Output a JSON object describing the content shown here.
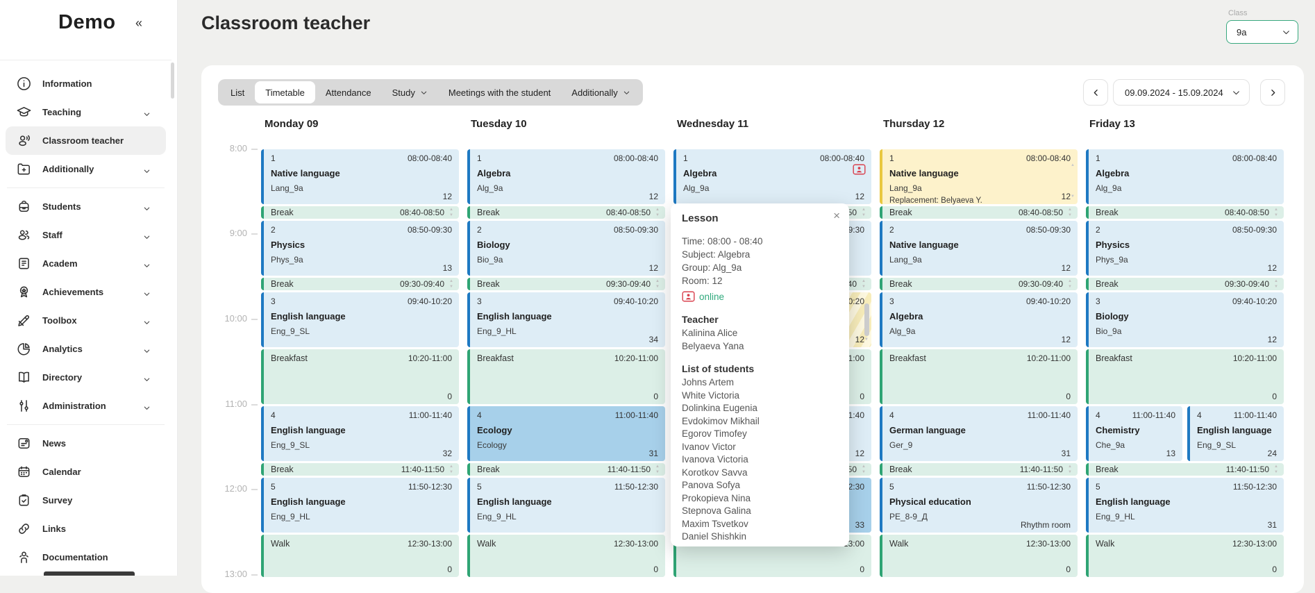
{
  "app": {
    "logo": "Demo"
  },
  "header": {
    "title": "Classroom teacher",
    "class_label": "Class",
    "class_value": "9a"
  },
  "tabs": [
    {
      "label": "List",
      "active": false,
      "dropdown": false
    },
    {
      "label": "Timetable",
      "active": true,
      "dropdown": false
    },
    {
      "label": "Attendance",
      "active": false,
      "dropdown": false
    },
    {
      "label": "Study",
      "active": false,
      "dropdown": true
    },
    {
      "label": "Meetings with the student",
      "active": false,
      "dropdown": false
    },
    {
      "label": "Additionally",
      "active": false,
      "dropdown": true
    }
  ],
  "date_nav": {
    "range": "09.09.2024 - 15.09.2024"
  },
  "sidebar": {
    "groups": [
      [
        {
          "label": "Information",
          "icon": "info",
          "expandable": false,
          "active": false
        },
        {
          "label": "Teaching",
          "icon": "teaching",
          "expandable": true,
          "active": false
        },
        {
          "label": "Classroom teacher",
          "icon": "classroom-teacher",
          "expandable": false,
          "active": true
        },
        {
          "label": "Additionally",
          "icon": "additionally",
          "expandable": true,
          "active": false
        }
      ],
      [
        {
          "label": "Students",
          "icon": "students",
          "expandable": true,
          "active": false
        },
        {
          "label": "Staff",
          "icon": "staff",
          "expandable": true,
          "active": false
        },
        {
          "label": "Academ",
          "icon": "academ",
          "expandable": true,
          "active": false
        },
        {
          "label": "Achievements",
          "icon": "achievements",
          "expandable": true,
          "active": false
        },
        {
          "label": "Toolbox",
          "icon": "toolbox",
          "expandable": true,
          "active": false
        },
        {
          "label": "Analytics",
          "icon": "analytics",
          "expandable": true,
          "active": false
        },
        {
          "label": "Directory",
          "icon": "directory",
          "expandable": true,
          "active": false
        },
        {
          "label": "Administration",
          "icon": "administration",
          "expandable": true,
          "active": false
        }
      ],
      [
        {
          "label": "News",
          "icon": "news",
          "expandable": false,
          "active": false
        },
        {
          "label": "Calendar",
          "icon": "calendar",
          "expandable": false,
          "active": false
        },
        {
          "label": "Survey",
          "icon": "survey",
          "expandable": false,
          "active": false
        },
        {
          "label": "Links",
          "icon": "links",
          "expandable": false,
          "active": false
        },
        {
          "label": "Documentation",
          "icon": "documentation",
          "expandable": false,
          "active": false
        }
      ]
    ]
  },
  "timetable": {
    "time_labels": [
      "8:00",
      "9:00",
      "10:00",
      "11:00",
      "12:00",
      "13:00"
    ],
    "days": [
      {
        "name": "Monday 09",
        "slots": [
          {
            "kind": "lesson",
            "num": "1",
            "subject": "Native language",
            "group": "Lang_9a",
            "time": "08:00-08:40",
            "room": "12",
            "variant": "normal"
          },
          {
            "kind": "break",
            "label": "Break",
            "time": "08:40-08:50"
          },
          {
            "kind": "lesson",
            "num": "2",
            "subject": "Physics",
            "group": "Phys_9a",
            "time": "08:50-09:30",
            "room": "13",
            "variant": "normal"
          },
          {
            "kind": "break",
            "label": "Break",
            "time": "09:30-09:40"
          },
          {
            "kind": "lesson",
            "num": "3",
            "subject": "English language",
            "group": "Eng_9_SL",
            "time": "09:40-10:20",
            "room": "",
            "variant": "normal"
          },
          {
            "kind": "break",
            "label": "Breakfast",
            "time": "10:20-11:00",
            "room": "0"
          },
          {
            "kind": "lesson",
            "num": "4",
            "subject": "English language",
            "group": "Eng_9_SL",
            "time": "11:00-11:40",
            "room": "32",
            "variant": "normal"
          },
          {
            "kind": "break",
            "label": "Break",
            "time": "11:40-11:50"
          },
          {
            "kind": "lesson",
            "num": "5",
            "subject": "English language",
            "group": "Eng_9_HL",
            "time": "11:50-12:30",
            "room": "",
            "variant": "normal"
          },
          {
            "kind": "break",
            "label": "Walk",
            "time": "12:30-13:00",
            "room": "0"
          }
        ]
      },
      {
        "name": "Tuesday 10",
        "slots": [
          {
            "kind": "lesson",
            "num": "1",
            "subject": "Algebra",
            "group": "Alg_9a",
            "time": "08:00-08:40",
            "room": "12",
            "variant": "normal"
          },
          {
            "kind": "break",
            "label": "Break",
            "time": "08:40-08:50"
          },
          {
            "kind": "lesson",
            "num": "2",
            "subject": "Biology",
            "group": "Bio_9a",
            "time": "08:50-09:30",
            "room": "12",
            "variant": "normal"
          },
          {
            "kind": "break",
            "label": "Break",
            "time": "09:30-09:40"
          },
          {
            "kind": "lesson",
            "num": "3",
            "subject": "English language",
            "group": "Eng_9_HL",
            "time": "09:40-10:20",
            "room": "34",
            "variant": "normal"
          },
          {
            "kind": "break",
            "label": "Breakfast",
            "time": "10:20-11:00",
            "room": "0"
          },
          {
            "kind": "lesson",
            "num": "4",
            "subject": "Ecology",
            "group": "Ecology",
            "time": "11:00-11:40",
            "room": "31",
            "variant": "selected"
          },
          {
            "kind": "break",
            "label": "Break",
            "time": "11:40-11:50"
          },
          {
            "kind": "lesson",
            "num": "5",
            "subject": "English language",
            "group": "Eng_9_HL",
            "time": "11:50-12:30",
            "room": "",
            "variant": "normal"
          },
          {
            "kind": "break",
            "label": "Walk",
            "time": "12:30-13:00",
            "room": "0"
          }
        ]
      },
      {
        "name": "Wednesday 11",
        "slots": [
          {
            "kind": "lesson",
            "num": "1",
            "subject": "Algebra",
            "group": "Alg_9a",
            "time": "08:00-08:40",
            "room": "12",
            "variant": "normal",
            "online": true
          },
          {
            "kind": "break",
            "label": "Break",
            "time": "08:40-08:50"
          },
          {
            "kind": "lesson",
            "num": "2",
            "subject": "",
            "group": "",
            "time": "08:50-09:30",
            "room": "",
            "variant": "normal"
          },
          {
            "kind": "break",
            "label": "Break",
            "time": "09:30-09:40"
          },
          {
            "kind": "lesson",
            "num": "3",
            "subject": "",
            "group": "",
            "time": "09:40-10:20",
            "room": "12",
            "variant": "striped",
            "scroll": true
          },
          {
            "kind": "break",
            "label": "Breakfast",
            "time": "10:20-11:00",
            "room": "0"
          },
          {
            "kind": "lesson",
            "num": "4",
            "subject": "",
            "group": "",
            "time": "11:00-11:40",
            "room": "12",
            "variant": "normal"
          },
          {
            "kind": "break",
            "label": "Break",
            "time": "11:40-11:50"
          },
          {
            "kind": "lesson",
            "num": "5",
            "subject": "",
            "group": "",
            "time": "11:50-12:30",
            "room": "33",
            "variant": "selected"
          },
          {
            "kind": "break",
            "label": "Walk",
            "time": "12:30-13:00",
            "room": "0"
          }
        ]
      },
      {
        "name": "Thursday 12",
        "slots": [
          {
            "kind": "lesson",
            "num": "1",
            "subject": "Native language",
            "group": "Lang_9a",
            "time": "08:00-08:40",
            "room": "12",
            "variant": "replacement",
            "replacement_note": "Replacement: Belyaeva Y.",
            "rail": true
          },
          {
            "kind": "break",
            "label": "Break",
            "time": "08:40-08:50"
          },
          {
            "kind": "lesson",
            "num": "2",
            "subject": "Native language",
            "group": "Lang_9a",
            "time": "08:50-09:30",
            "room": "12",
            "variant": "normal"
          },
          {
            "kind": "break",
            "label": "Break",
            "time": "09:30-09:40"
          },
          {
            "kind": "lesson",
            "num": "3",
            "subject": "Algebra",
            "group": "Alg_9a",
            "time": "09:40-10:20",
            "room": "12",
            "variant": "normal"
          },
          {
            "kind": "break",
            "label": "Breakfast",
            "time": "10:20-11:00",
            "room": "0"
          },
          {
            "kind": "lesson",
            "num": "4",
            "subject": "German language",
            "group": "Ger_9",
            "time": "11:00-11:40",
            "room": "31",
            "variant": "normal"
          },
          {
            "kind": "break",
            "label": "Break",
            "time": "11:40-11:50"
          },
          {
            "kind": "lesson",
            "num": "5",
            "subject": "Physical education",
            "group": "PE_8-9_Д",
            "time": "11:50-12:30",
            "room": "Rhythm room",
            "variant": "normal"
          },
          {
            "kind": "break",
            "label": "Walk",
            "time": "12:30-13:00",
            "room": "0"
          }
        ]
      },
      {
        "name": "Friday 13",
        "slots": [
          {
            "kind": "lesson",
            "num": "1",
            "subject": "Algebra",
            "group": "Alg_9a",
            "time": "08:00-08:40",
            "room": "",
            "variant": "normal"
          },
          {
            "kind": "break",
            "label": "Break",
            "time": "08:40-08:50"
          },
          {
            "kind": "lesson",
            "num": "2",
            "subject": "Physics",
            "group": "Phys_9a",
            "time": "08:50-09:30",
            "room": "12",
            "variant": "normal"
          },
          {
            "kind": "break",
            "label": "Break",
            "time": "09:30-09:40"
          },
          {
            "kind": "lesson",
            "num": "3",
            "subject": "Biology",
            "group": "Bio_9a",
            "time": "09:40-10:20",
            "room": "12",
            "variant": "normal"
          },
          {
            "kind": "break",
            "label": "Breakfast",
            "time": "10:20-11:00",
            "room": "0"
          },
          {
            "kind": "lesson",
            "split": [
              {
                "num": "4",
                "subject": "Chemistry",
                "group": "Che_9a",
                "time": "11:00-11:40",
                "room": "13",
                "variant": "normal"
              },
              {
                "num": "4",
                "subject": "English language",
                "group": "Eng_9_SL",
                "time": "11:00-11:40",
                "room": "24",
                "variant": "normal"
              }
            ]
          },
          {
            "kind": "break",
            "label": "Break",
            "time": "11:40-11:50"
          },
          {
            "kind": "lesson",
            "num": "5",
            "subject": "English language",
            "group": "Eng_9_HL",
            "time": "11:50-12:30",
            "room": "31",
            "variant": "normal"
          },
          {
            "kind": "break",
            "label": "Walk",
            "time": "12:30-13:00",
            "room": "0"
          }
        ]
      }
    ]
  },
  "popup": {
    "title": "Lesson",
    "close_icon": "×",
    "info": [
      "Time: 08:00 - 08:40",
      "Subject: Algebra",
      "Group: Alg_9a",
      "Room: 12"
    ],
    "online_label": "online",
    "teacher_header": "Teacher",
    "teachers": [
      "Kalinina Alice",
      "Belyaeva Yana"
    ],
    "students_header": "List of students",
    "students": [
      "Johns Artem",
      "White Victoria",
      "Dolinkina Eugenia",
      "Evdokimov Mikhail",
      "Egorov Timofey",
      "Ivanov Victor",
      "Ivanova Victoria",
      "Korotkov Savva",
      "Panova Sofya",
      "Prokopieva Nina",
      "Stepnova Galina",
      "Maxim Tsvetkov",
      "Daniel Shishkin"
    ]
  },
  "colors": {
    "accent_teal": "#38a87e",
    "lesson_blue_border": "#1e79c2",
    "lesson_blue_bg": "#deedf6",
    "selected_blue_bg": "#a7d0ea",
    "break_green_border": "#2fa474",
    "break_green_bg": "#dcefe7",
    "replacement_yellow_border": "#e9c83f",
    "replacement_yellow_bg": "#fdf2cb",
    "online_red": "#d9414e",
    "online_text_green": "#2fa97c"
  }
}
